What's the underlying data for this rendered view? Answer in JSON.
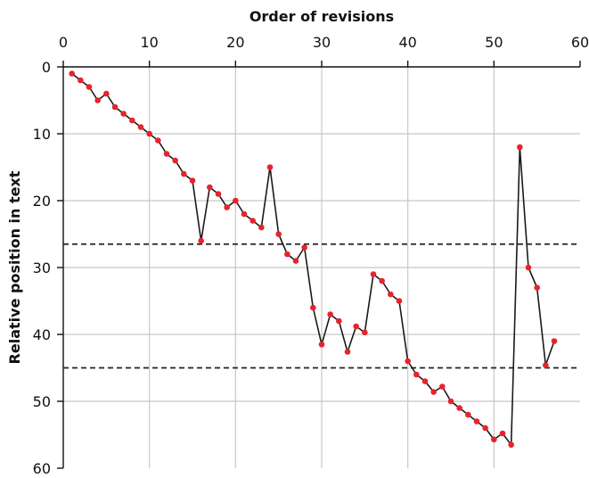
{
  "chart_data": {
    "type": "line",
    "title": "",
    "xlabel": "Order of revisions",
    "ylabel": "Relative position in text",
    "xlim": [
      0,
      60
    ],
    "ylim": [
      0,
      60
    ],
    "x_axis_position": "top",
    "y_axis_inverted": true,
    "grid": true,
    "x_ticks": [
      0,
      10,
      20,
      30,
      40,
      50,
      60
    ],
    "y_ticks": [
      0,
      10,
      20,
      30,
      40,
      50,
      60
    ],
    "series": [
      {
        "x": [
          1,
          2,
          3,
          4,
          5,
          6,
          7,
          8,
          9,
          10,
          11,
          12,
          13,
          14,
          15,
          16,
          17,
          18,
          19,
          20,
          21,
          22,
          23,
          24,
          25,
          26,
          27,
          28,
          29,
          30,
          31,
          32,
          33,
          34,
          35,
          36,
          37,
          38,
          39,
          40,
          41,
          42,
          43,
          44,
          45,
          46,
          47,
          48,
          49,
          50,
          51,
          52,
          53,
          54,
          55,
          56,
          57
        ],
        "values": [
          1,
          2,
          3,
          5,
          4,
          6,
          7,
          8,
          9,
          10,
          11,
          13,
          14,
          16,
          17,
          26,
          18,
          19,
          21,
          20,
          22,
          23,
          24,
          15,
          25,
          28,
          29,
          27,
          36,
          41.5,
          37,
          38,
          42.6,
          38.8,
          39.7,
          31,
          32,
          34,
          35,
          44,
          46,
          47,
          48.6,
          47.8,
          50,
          51,
          52,
          53,
          54,
          55.7,
          54.8,
          56.5,
          12,
          30,
          33,
          44.6,
          41
        ]
      }
    ],
    "reference_lines": [
      {
        "orientation": "horizontal",
        "y": 26.5,
        "style": "dashed"
      },
      {
        "orientation": "horizontal",
        "y": 45,
        "style": "dashed"
      }
    ],
    "colors": {
      "line": "#1a1a1a",
      "marker": "#e8232d",
      "grid": "#c8c8c8",
      "axis": "#111111",
      "reference_line": "#222222"
    }
  }
}
